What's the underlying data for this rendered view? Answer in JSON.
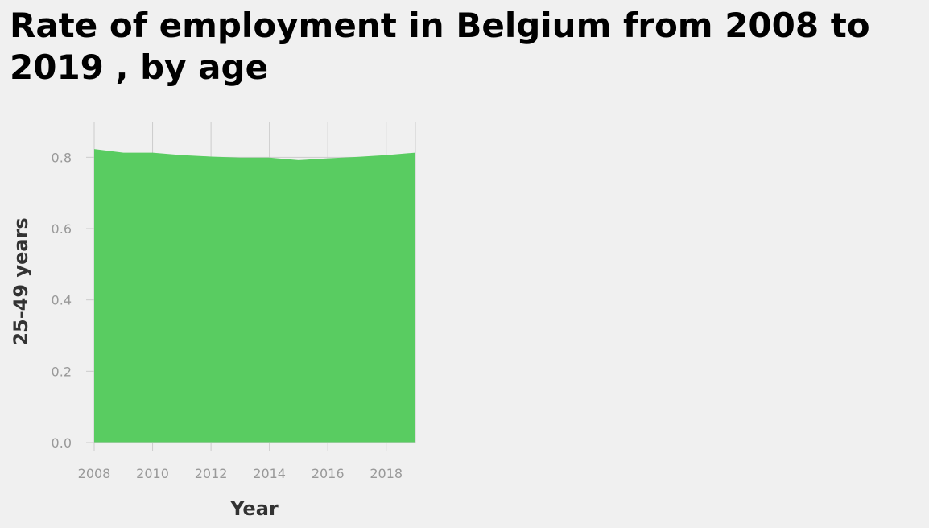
{
  "title": "Rate of employment in Belgium from 2008 to 2019 , by age",
  "colors": {
    "background": "#f0f0f0",
    "area_fill": "#59cc61",
    "grid": "#cccccc",
    "tick_text": "#999999",
    "axis_title": "#333333"
  },
  "chart_data": {
    "type": "area",
    "xlabel": "Year",
    "ylabel": "25-49 years",
    "x": [
      2008,
      2009,
      2010,
      2011,
      2012,
      2013,
      2014,
      2015,
      2016,
      2017,
      2018,
      2019
    ],
    "series": [
      {
        "name": "25-49 years",
        "values": [
          0.823,
          0.813,
          0.813,
          0.806,
          0.802,
          0.799,
          0.799,
          0.792,
          0.797,
          0.801,
          0.806,
          0.813
        ]
      }
    ],
    "xlim": [
      2008,
      2019
    ],
    "ylim": [
      0,
      0.9
    ],
    "x_ticks": [
      2008,
      2010,
      2012,
      2014,
      2016,
      2018
    ],
    "x_tick_labels": [
      "2008",
      "2010",
      "2012",
      "2014",
      "2016",
      "2018"
    ],
    "y_ticks": [
      0.0,
      0.2,
      0.4,
      0.6,
      0.8
    ],
    "y_tick_labels": [
      "0.0",
      "0.2",
      "0.4",
      "0.6",
      "0.8"
    ],
    "grid": true,
    "legend": "none"
  }
}
